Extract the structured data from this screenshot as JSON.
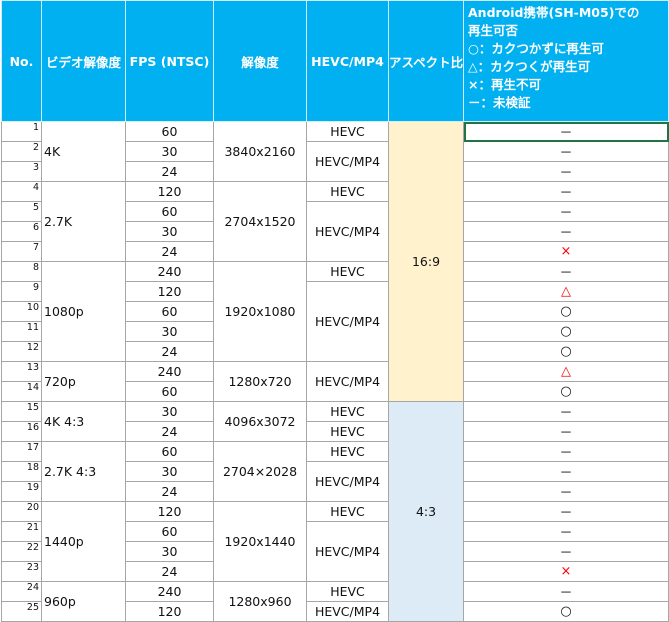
{
  "header": {
    "no": "No.",
    "video": "ビデオ解像度",
    "fps": "FPS (NTSC)",
    "resolution": "解像度",
    "codec": "HEVC/MP4",
    "aspect": "アスペクト比",
    "android": [
      "Android携帯(SH-M05)での",
      "再生可否",
      "○：カクつかずに再生可",
      "△：カクつくが再生可",
      "×：再生不可",
      "－：未検証"
    ]
  },
  "table": {
    "aspect_groups": [
      {
        "aspect": "16:9",
        "color": "#fff2cc",
        "groups": [
          {
            "video": "4K",
            "resolution": "3840x2160",
            "codecs": [
              {
                "codec": "HEVC",
                "rows": [
                  {
                    "no": 1,
                    "fps": 60,
                    "result": "－"
                  }
                ]
              },
              {
                "codec": "HEVC/MP4",
                "rows": [
                  {
                    "no": 2,
                    "fps": 30,
                    "result": "－"
                  },
                  {
                    "no": 3,
                    "fps": 24,
                    "result": "－"
                  }
                ]
              }
            ]
          },
          {
            "video": "2.7K",
            "resolution": "2704x1520",
            "codecs": [
              {
                "codec": "HEVC",
                "rows": [
                  {
                    "no": 4,
                    "fps": 120,
                    "result": "－"
                  }
                ]
              },
              {
                "codec": "HEVC/MP4",
                "rows": [
                  {
                    "no": 5,
                    "fps": 60,
                    "result": "－"
                  },
                  {
                    "no": 6,
                    "fps": 30,
                    "result": "－"
                  },
                  {
                    "no": 7,
                    "fps": 24,
                    "result": "×",
                    "color": "#ff0000"
                  }
                ]
              }
            ]
          },
          {
            "video": "1080p",
            "resolution": "1920x1080",
            "codecs": [
              {
                "codec": "HEVC",
                "rows": [
                  {
                    "no": 8,
                    "fps": 240,
                    "result": "－"
                  }
                ]
              },
              {
                "codec": "HEVC/MP4",
                "rows": [
                  {
                    "no": 9,
                    "fps": 120,
                    "result": "△",
                    "color": "#ff0000"
                  },
                  {
                    "no": 10,
                    "fps": 60,
                    "result": "○"
                  },
                  {
                    "no": 11,
                    "fps": 30,
                    "result": "○"
                  },
                  {
                    "no": 12,
                    "fps": 24,
                    "result": "○"
                  }
                ]
              }
            ]
          },
          {
            "video": "720p",
            "resolution": "1280x720",
            "codecs": [
              {
                "codec": "HEVC/MP4",
                "rows": [
                  {
                    "no": 13,
                    "fps": 240,
                    "result": "△",
                    "color": "#ff0000"
                  },
                  {
                    "no": 14,
                    "fps": 60,
                    "result": "○"
                  }
                ]
              }
            ]
          }
        ]
      },
      {
        "aspect": "4:3",
        "color": "#ddebf7",
        "groups": [
          {
            "video": "4K 4:3",
            "resolution": "4096x3072",
            "codecs": [
              {
                "codec": "HEVC",
                "rows": [
                  {
                    "no": 15,
                    "fps": 30,
                    "result": "－"
                  }
                ]
              },
              {
                "codec": "HEVC",
                "rows": [
                  {
                    "no": 16,
                    "fps": 24,
                    "result": "－"
                  }
                ]
              }
            ]
          },
          {
            "video": "2.7K 4:3",
            "resolution": "2704×2028",
            "codecs": [
              {
                "codec": "HEVC",
                "rows": [
                  {
                    "no": 17,
                    "fps": 60,
                    "result": "－"
                  }
                ]
              },
              {
                "codec": "HEVC/MP4",
                "rows": [
                  {
                    "no": 18,
                    "fps": 30,
                    "result": "－"
                  },
                  {
                    "no": 19,
                    "fps": 24,
                    "result": "－"
                  }
                ]
              }
            ]
          },
          {
            "video": "1440p",
            "resolution": "1920x1440",
            "codecs": [
              {
                "codec": "HEVC",
                "rows": [
                  {
                    "no": 20,
                    "fps": 120,
                    "result": "－"
                  }
                ]
              },
              {
                "codec": "HEVC/MP4",
                "rows": [
                  {
                    "no": 21,
                    "fps": 60,
                    "result": "－"
                  },
                  {
                    "no": 22,
                    "fps": 30,
                    "result": "－"
                  },
                  {
                    "no": 23,
                    "fps": 24,
                    "result": "×",
                    "color": "#ff0000"
                  }
                ]
              }
            ]
          },
          {
            "video": "960p",
            "resolution": "1280x960",
            "codecs": [
              {
                "codec": "HEVC",
                "rows": [
                  {
                    "no": 24,
                    "fps": 240,
                    "result": "－"
                  }
                ]
              },
              {
                "codec": "HEVC/MP4",
                "rows": [
                  {
                    "no": 25,
                    "fps": 120,
                    "result": "○"
                  }
                ]
              }
            ]
          }
        ]
      }
    ]
  }
}
